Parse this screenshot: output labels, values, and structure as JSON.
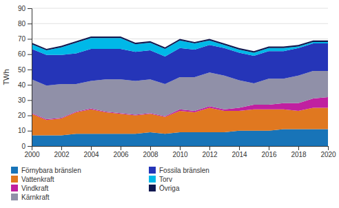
{
  "chart_data": {
    "type": "area",
    "stacked": true,
    "ylabel": "TWh",
    "x": [
      2000,
      2001,
      2002,
      2003,
      2004,
      2005,
      2006,
      2007,
      2008,
      2009,
      2010,
      2011,
      2012,
      2013,
      2014,
      2015,
      2016,
      2017,
      2018,
      2019,
      2020
    ],
    "series": [
      {
        "name": "Förnybara bränslen",
        "color": "#1874b8",
        "values": [
          7,
          7,
          7,
          8,
          8,
          8,
          8,
          8,
          9,
          8,
          9,
          9,
          9,
          9,
          10,
          10,
          10,
          11,
          11,
          11,
          11
        ]
      },
      {
        "name": "Vattenkraft",
        "color": "#e07820",
        "values": [
          14,
          10,
          11,
          14,
          16,
          14,
          13,
          12,
          12,
          11,
          14,
          13,
          16,
          14,
          13,
          14,
          14,
          13,
          12,
          14,
          14
        ]
      },
      {
        "name": "Vindkraft",
        "color": "#c020a0",
        "values": [
          0.5,
          0.5,
          0.5,
          0.5,
          0.5,
          0.5,
          0.5,
          0.5,
          0.5,
          0.5,
          1,
          1,
          1,
          1,
          2,
          3,
          3,
          4,
          5,
          6,
          7
        ]
      },
      {
        "name": "Kärnkraft",
        "color": "#9090a8",
        "values": [
          22,
          22,
          22,
          18,
          18,
          21,
          22,
          22,
          22,
          21,
          21,
          22,
          22,
          22,
          18,
          14,
          17,
          16,
          18,
          18,
          17
        ]
      },
      {
        "name": "Fossila bränslen",
        "color": "#2535b8",
        "values": [
          20,
          20,
          19,
          20,
          21,
          20,
          20,
          19,
          19,
          18,
          19,
          18,
          18,
          18,
          18,
          18,
          18,
          18,
          18,
          18,
          18
        ]
      },
      {
        "name": "Torv",
        "color": "#00b8e8",
        "values": [
          3,
          3,
          5,
          7,
          7,
          7,
          7,
          5,
          5,
          5,
          5,
          4,
          3,
          2,
          2,
          2,
          2,
          2,
          1,
          1,
          1
        ]
      },
      {
        "name": "Övriga",
        "color": "#101850",
        "values": [
          1,
          1,
          1,
          1,
          1,
          1,
          1,
          1,
          1,
          1,
          1,
          1,
          1,
          1,
          1,
          1,
          1,
          1,
          1,
          1,
          1
        ]
      }
    ],
    "xlim": [
      2000,
      2020
    ],
    "xticks": [
      2000,
      2002,
      2004,
      2006,
      2008,
      2010,
      2012,
      2014,
      2016,
      2018,
      2020
    ],
    "ylim": [
      0,
      90
    ],
    "yticks": [
      0,
      10,
      20,
      30,
      40,
      50,
      60,
      70,
      80,
      90
    ],
    "grid": true,
    "legend": "bottom"
  }
}
